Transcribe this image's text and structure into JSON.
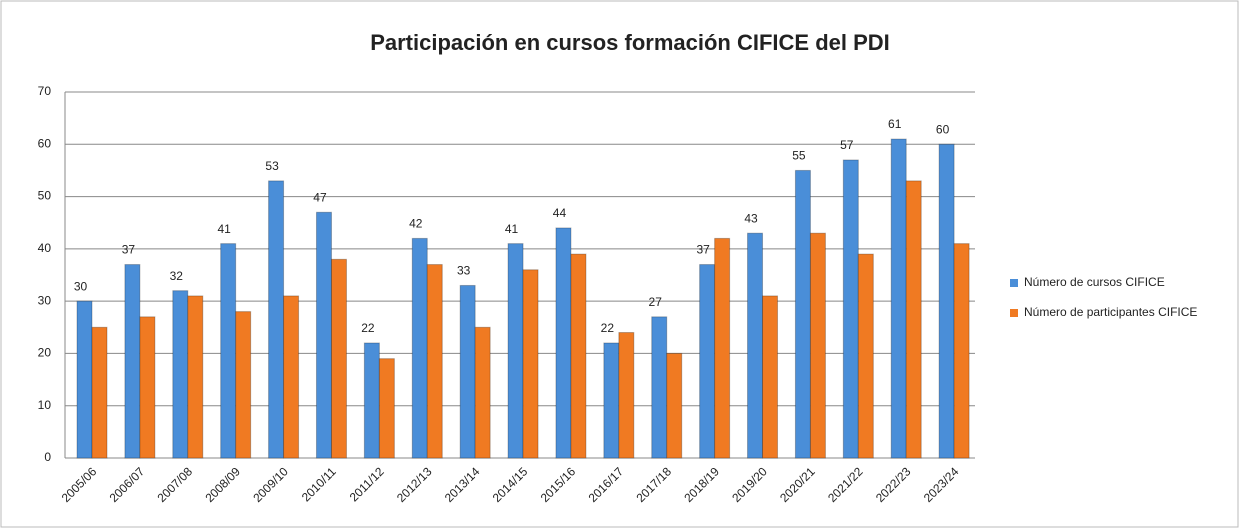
{
  "chart_data": {
    "type": "bar",
    "title": "Participación en cursos formación CIFICE del PDI",
    "categories": [
      "2005/06",
      "2006/07",
      "2007/08",
      "2008/09",
      "2009/10",
      "2010/11",
      "2011/12",
      "2012/13",
      "2013/14",
      "2014/15",
      "2015/16",
      "2016/17",
      "2017/18",
      "2018/19",
      "2019/20",
      "2020/21",
      "2021/22",
      "2022/23",
      "2023/24"
    ],
    "series": [
      {
        "name": "Número de cursos CIFICE",
        "color": "#4a8ed8",
        "values": [
          30,
          37,
          32,
          41,
          53,
          47,
          22,
          42,
          33,
          41,
          44,
          22,
          27,
          37,
          43,
          55,
          57,
          61,
          60
        ],
        "data_labels": true
      },
      {
        "name": "Número de participantes CIFICE",
        "color": "#f07a22",
        "values": [
          25,
          27,
          31,
          28,
          31,
          38,
          19,
          37,
          25,
          36,
          39,
          24,
          20,
          42,
          31,
          43,
          39,
          53,
          41
        ],
        "data_labels": false
      }
    ],
    "ylim": [
      0,
      70
    ],
    "yticks": [
      0,
      10,
      20,
      30,
      40,
      50,
      60,
      70
    ],
    "grid": true,
    "legend": "right"
  }
}
